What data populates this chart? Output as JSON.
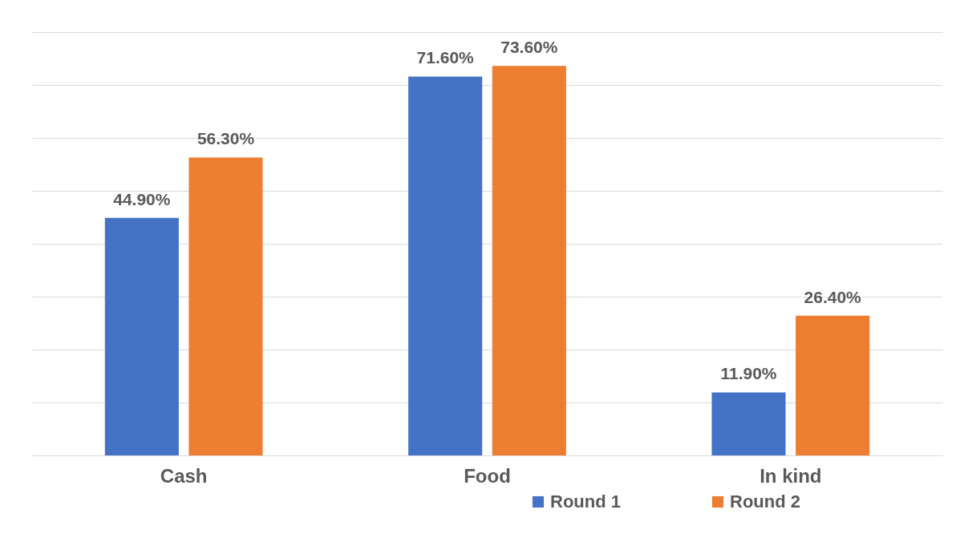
{
  "chart_data": {
    "type": "bar",
    "categories": [
      "Cash",
      "Food",
      "In kind"
    ],
    "series": [
      {
        "name": "Round 1",
        "color": "#4472c4",
        "values": [
          44.9,
          71.6,
          11.9
        ],
        "value_labels": [
          "44.90%",
          "71.60%",
          "11.90%"
        ]
      },
      {
        "name": "Round 2",
        "color": "#ed7d31",
        "values": [
          56.3,
          73.6,
          26.4
        ],
        "value_labels": [
          "56.30%",
          "73.60%",
          "26.40%"
        ]
      }
    ],
    "ylim": [
      0,
      80
    ],
    "yticks": [
      {
        "value": 0,
        "label": null
      },
      {
        "value": 10,
        "label": null
      },
      {
        "value": 20,
        "label": null
      },
      {
        "value": 30,
        "label": null
      },
      {
        "value": 40,
        "label": null
      },
      {
        "value": 50,
        "label": null
      },
      {
        "value": 60,
        "label": null
      },
      {
        "value": 70,
        "label": null
      },
      {
        "value": 80,
        "label": null
      }
    ],
    "grid": "y",
    "legend": "bottom"
  }
}
